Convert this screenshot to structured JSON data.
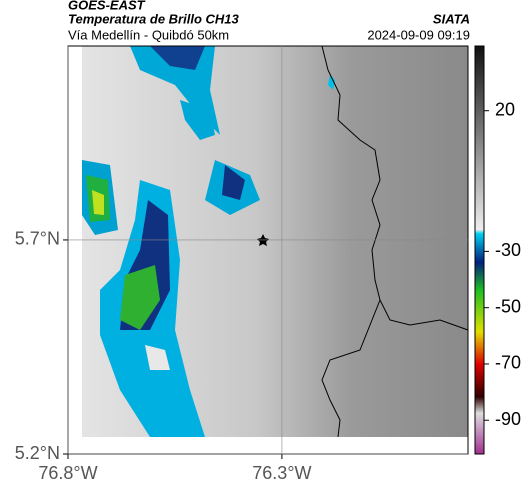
{
  "header": {
    "source": "GOES-EAST",
    "product": "Temperatura de Brillo CH13",
    "route": "Vía Medellín - Quibdó 50km",
    "agency": "SIATA",
    "datetime": "2024-09-09 09:19"
  },
  "map": {
    "xlim": [
      -76.8,
      -75.865
    ],
    "ylim": [
      5.2,
      6.153
    ],
    "xticks": [
      {
        "value": -76.8,
        "label": "76.8°W"
      },
      {
        "value": -76.3,
        "label": "76.3°W"
      }
    ],
    "yticks": [
      {
        "value": 5.2,
        "label": "5.2°N"
      },
      {
        "value": 5.7,
        "label": "5.7°N"
      }
    ]
  },
  "colorbar": {
    "lim": [
      43,
      -102
    ],
    "ticks": [
      20,
      -30,
      -50,
      -70,
      -90
    ]
  }
}
